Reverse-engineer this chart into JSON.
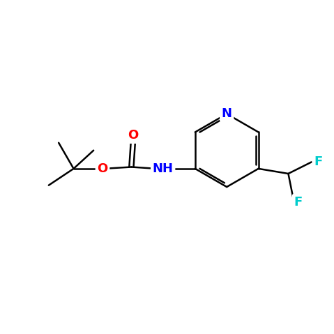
{
  "background_color": "#ffffff",
  "bond_color": "#000000",
  "bond_width": 1.8,
  "atom_colors": {
    "N_pyridine": "#0000ff",
    "O": "#ff0000",
    "F": "#00cccc",
    "NH": "#0000ff"
  },
  "font_size_atoms": 13
}
